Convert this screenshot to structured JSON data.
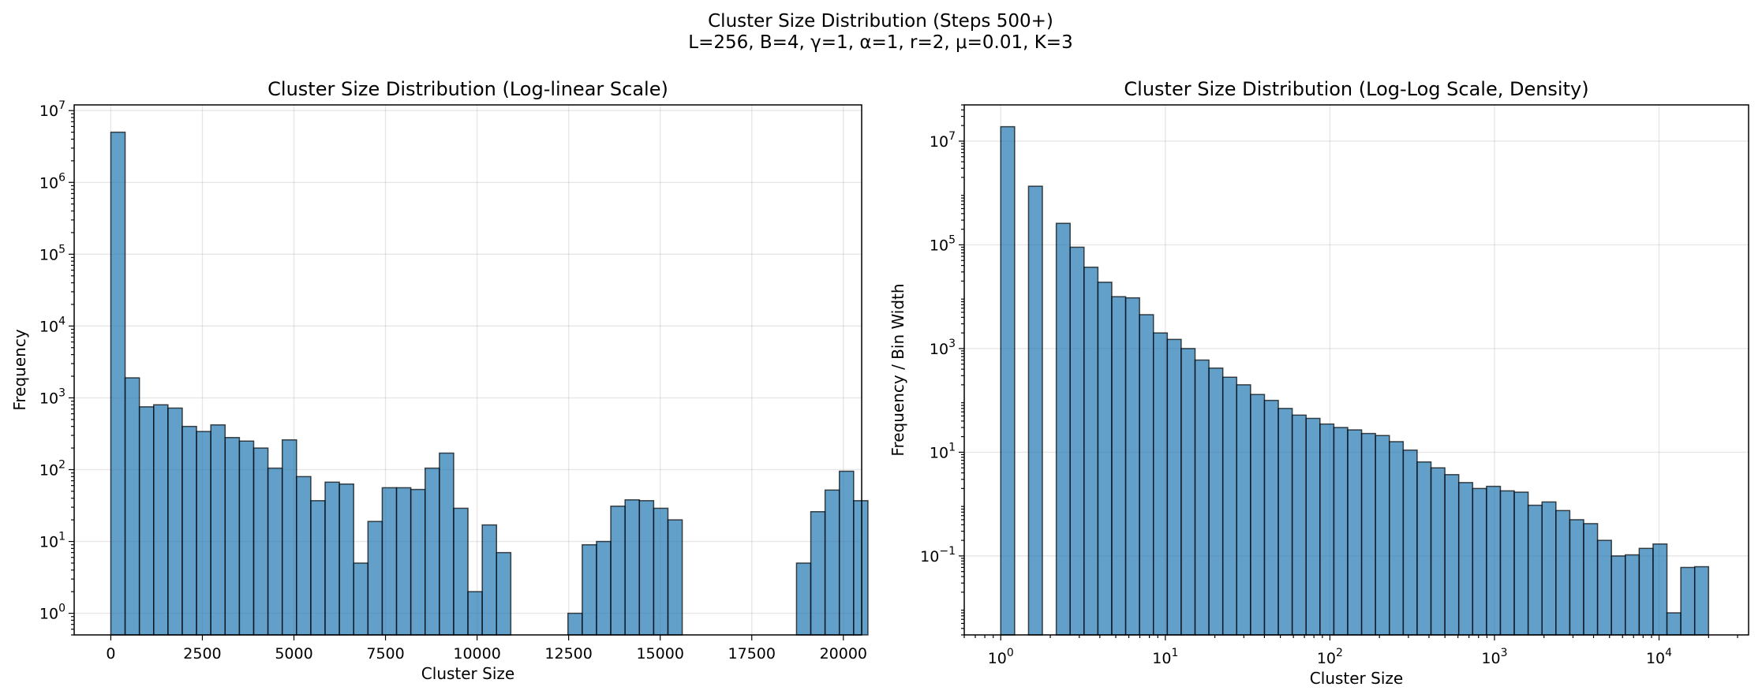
{
  "figure": {
    "suptitle_line1": "Cluster Size Distribution (Steps 500+)",
    "suptitle_line2": "L=256, B=4, γ=1, α=1, r=2, μ=0.01, K=3"
  },
  "colors": {
    "bar": "#1f77b4",
    "edge": "#000000"
  },
  "chart_data": [
    {
      "type": "bar",
      "title": "Cluster Size Distribution (Log-linear Scale)",
      "xlabel": "Cluster Size",
      "ylabel": "Frequency",
      "xscale": "linear",
      "yscale": "log",
      "xlim": [
        -1000,
        20500
      ],
      "ylim": [
        0.5,
        12000000
      ],
      "grid": true,
      "xticks": [
        0,
        2500,
        5000,
        7500,
        10000,
        12500,
        15000,
        17500,
        20000
      ],
      "xtick_labels": [
        "0",
        "2500",
        "5000",
        "7500",
        "10000",
        "12500",
        "15000",
        "17500",
        "20000"
      ],
      "yticks": [
        1,
        10,
        100,
        1000,
        10000,
        100000,
        1000000,
        10000000
      ],
      "ytick_labels": [
        {
          "base": "10",
          "exp": "0"
        },
        {
          "base": "10",
          "exp": "1"
        },
        {
          "base": "10",
          "exp": "2"
        },
        {
          "base": "10",
          "exp": "3"
        },
        {
          "base": "10",
          "exp": "4"
        },
        {
          "base": "10",
          "exp": "5"
        },
        {
          "base": "10",
          "exp": "6"
        },
        {
          "base": "10",
          "exp": "7"
        }
      ],
      "bin_start": 1,
      "bin_width": 390,
      "values": [
        5000000,
        1900,
        750,
        800,
        720,
        400,
        340,
        420,
        280,
        250,
        200,
        105,
        260,
        80,
        37,
        67,
        63,
        5,
        19,
        56,
        56,
        53,
        105,
        170,
        29,
        2,
        17,
        7,
        0,
        0,
        0,
        0,
        1,
        9,
        10,
        31,
        38,
        37,
        29,
        20,
        0,
        0,
        0,
        0,
        0,
        0,
        0,
        0,
        5,
        26,
        52,
        95,
        37
      ]
    },
    {
      "type": "bar",
      "title": "Cluster Size Distribution (Log-Log Scale, Density)",
      "xlabel": "Cluster Size",
      "ylabel": "Frequency / Bin Width",
      "xscale": "log",
      "yscale": "log",
      "xlim": [
        0.6,
        35000
      ],
      "ylim": [
        0.003,
        50000000
      ],
      "grid": true,
      "xticks": [
        1,
        10,
        100,
        1000,
        10000
      ],
      "xtick_labels": [
        {
          "base": "10",
          "exp": "0"
        },
        {
          "base": "10",
          "exp": "1"
        },
        {
          "base": "10",
          "exp": "2"
        },
        {
          "base": "10",
          "exp": "3"
        },
        {
          "base": "10",
          "exp": "4"
        }
      ],
      "yticks": [
        0.1,
        10,
        1000,
        100000,
        10000000
      ],
      "ytick_labels": [
        {
          "base": "10",
          "exp": "−1"
        },
        {
          "base": "10",
          "exp": "1"
        },
        {
          "base": "10",
          "exp": "3"
        },
        {
          "base": "10",
          "exp": "5"
        },
        {
          "base": "10",
          "exp": "7"
        }
      ],
      "bin_edge_first": 1,
      "bin_edge_last": 20000,
      "values": [
        19000000,
        0,
        1350000,
        0,
        260000,
        90000,
        37000,
        19000,
        10000,
        9500,
        4500,
        2000,
        1500,
        1000,
        600,
        420,
        280,
        200,
        130,
        100,
        70,
        52,
        45,
        35,
        30,
        27,
        23,
        21,
        16,
        11,
        6.5,
        5.0,
        3.7,
        2.6,
        2.0,
        2.2,
        1.8,
        1.7,
        0.95,
        1.1,
        0.75,
        0.5,
        0.42,
        0.2,
        0.1,
        0.105,
        0.14,
        0.17,
        0.008,
        0.06,
        0.062
      ]
    }
  ]
}
